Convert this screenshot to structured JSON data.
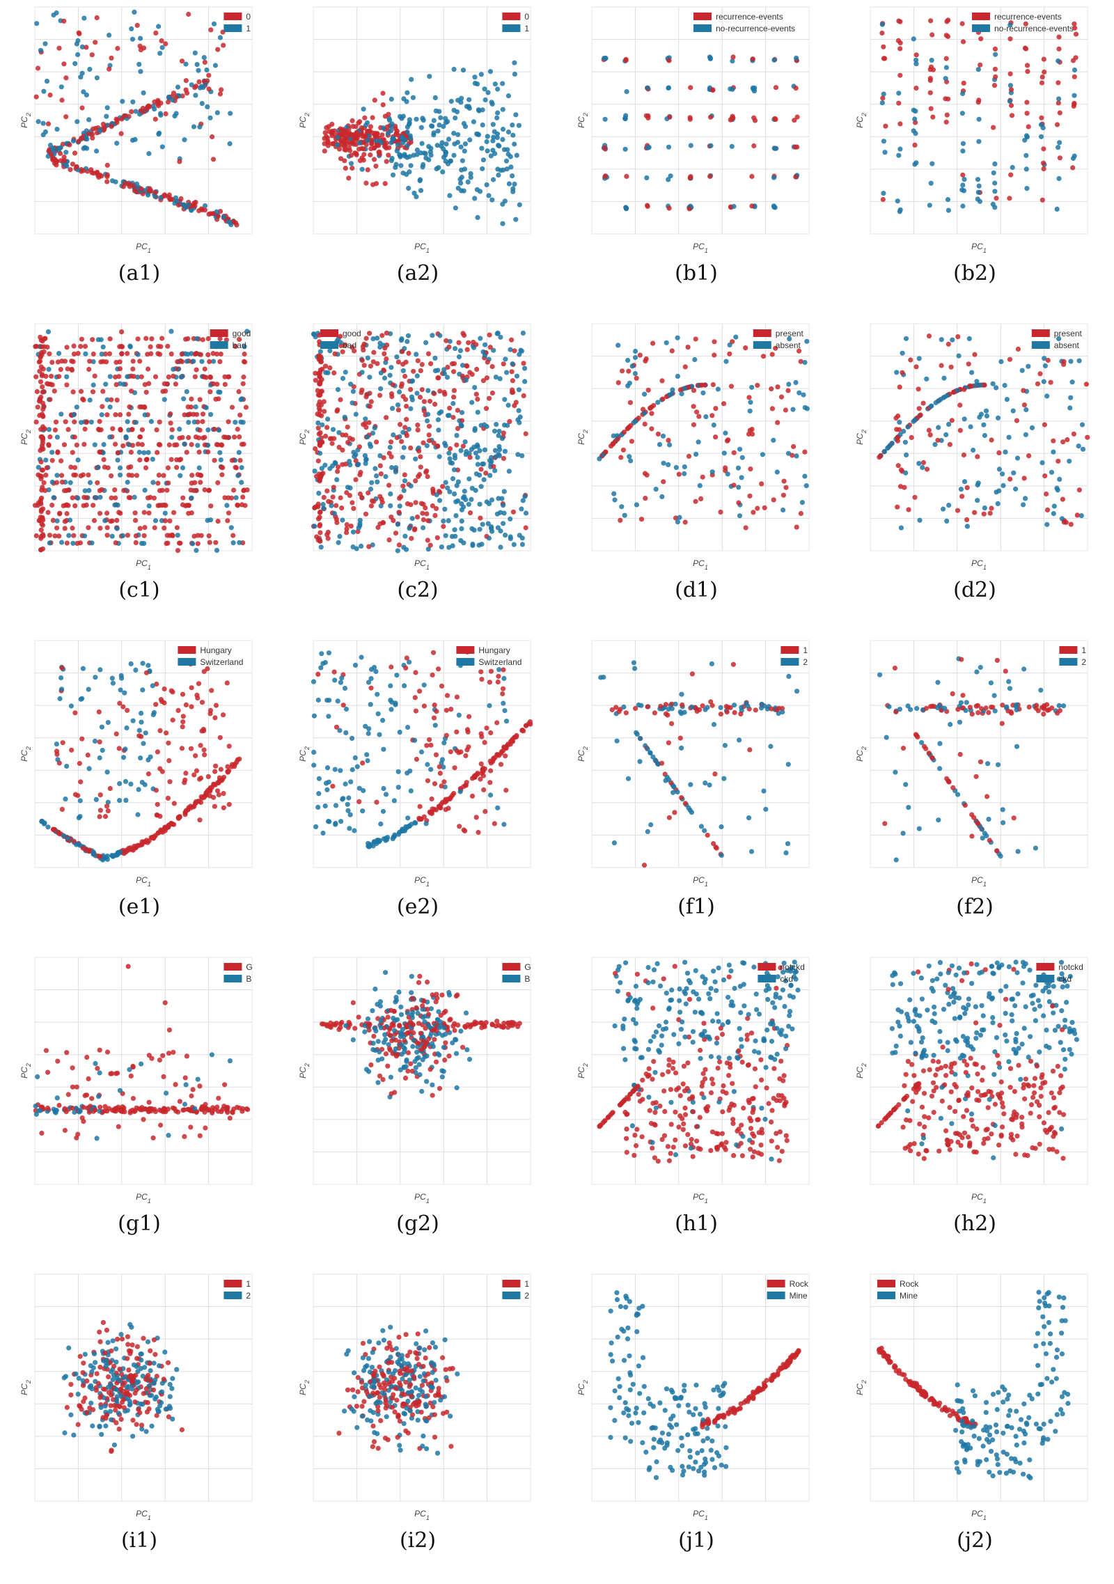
{
  "colors": {
    "class_a": "#c8282d",
    "class_b": "#1f77a4",
    "grid": "#dddddd"
  },
  "axis": {
    "xlabel": "PC",
    "ylabel": "PC",
    "x_sub": "1",
    "y_sub": "2"
  },
  "chart_data": [
    {
      "id": "a1",
      "type": "scatter",
      "caption": "(a1)",
      "legend": [
        "0",
        "1"
      ],
      "legend_position": "top-right",
      "shape": "fan",
      "xlim": [
        0,
        10
      ],
      "ylim": [
        0,
        10
      ]
    },
    {
      "id": "a2",
      "type": "scatter",
      "caption": "(a2)",
      "legend": [
        "0",
        "1"
      ],
      "legend_position": "top-right",
      "shape": "wedge",
      "xlim": [
        0,
        10
      ],
      "ylim": [
        0,
        10
      ]
    },
    {
      "id": "b1",
      "type": "scatter",
      "caption": "(b1)",
      "legend": [
        "recurrence-events",
        "no-recurrence-events"
      ],
      "legend_position": "top-right",
      "shape": "columns",
      "xlim": [
        0,
        10
      ],
      "ylim": [
        0,
        10
      ]
    },
    {
      "id": "b2",
      "type": "scatter",
      "caption": "(b2)",
      "legend": [
        "recurrence-events",
        "no-recurrence-events"
      ],
      "legend_position": "top-right",
      "shape": "columns2",
      "xlim": [
        0,
        10
      ],
      "ylim": [
        0,
        10
      ]
    },
    {
      "id": "c1",
      "type": "scatter",
      "caption": "(c1)",
      "legend": [
        "good",
        "bad"
      ],
      "legend_position": "top-right",
      "shape": "dense",
      "xlim": [
        0,
        10
      ],
      "ylim": [
        0,
        10
      ]
    },
    {
      "id": "c2",
      "type": "scatter",
      "caption": "(c2)",
      "legend": [
        "good",
        "bad"
      ],
      "legend_position": "top-left",
      "shape": "dense2",
      "xlim": [
        0,
        10
      ],
      "ylim": [
        0,
        10
      ]
    },
    {
      "id": "d1",
      "type": "scatter",
      "caption": "(d1)",
      "legend": [
        "present",
        "absent"
      ],
      "legend_position": "top-right",
      "shape": "arc",
      "xlim": [
        0,
        10
      ],
      "ylim": [
        0,
        10
      ]
    },
    {
      "id": "d2",
      "type": "scatter",
      "caption": "(d2)",
      "legend": [
        "present",
        "absent"
      ],
      "legend_position": "top-right",
      "shape": "arc",
      "xlim": [
        0,
        10
      ],
      "ylim": [
        0,
        10
      ]
    },
    {
      "id": "e1",
      "type": "scatter",
      "caption": "(e1)",
      "legend": [
        "Hungary",
        "Switzerland"
      ],
      "legend_position": "top-right",
      "shape": "vcurve",
      "xlim": [
        0,
        10
      ],
      "ylim": [
        0,
        10
      ]
    },
    {
      "id": "e2",
      "type": "scatter",
      "caption": "(e2)",
      "legend": [
        "Hungary",
        "Switzerland"
      ],
      "legend_position": "top-right",
      "shape": "hull",
      "xlim": [
        0,
        10
      ],
      "ylim": [
        0,
        10
      ]
    },
    {
      "id": "f1",
      "type": "scatter",
      "caption": "(f1)",
      "legend": [
        "1",
        "2"
      ],
      "legend_position": "top-right",
      "shape": "cross",
      "xlim": [
        0,
        10
      ],
      "ylim": [
        0,
        10
      ]
    },
    {
      "id": "f2",
      "type": "scatter",
      "caption": "(f2)",
      "legend": [
        "1",
        "2"
      ],
      "legend_position": "top-right",
      "shape": "cross2",
      "xlim": [
        0,
        10
      ],
      "ylim": [
        0,
        10
      ]
    },
    {
      "id": "g1",
      "type": "scatter",
      "caption": "(g1)",
      "legend": [
        "G",
        "B"
      ],
      "legend_position": "top-right",
      "shape": "flat",
      "xlim": [
        0,
        10
      ],
      "ylim": [
        0,
        10
      ]
    },
    {
      "id": "g2",
      "type": "scatter",
      "caption": "(g2)",
      "legend": [
        "G",
        "B"
      ],
      "legend_position": "top-right",
      "shape": "diamond",
      "xlim": [
        0,
        10
      ],
      "ylim": [
        0,
        10
      ]
    },
    {
      "id": "h1",
      "type": "scatter",
      "caption": "(h1)",
      "legend": [
        "notckd",
        "ckd"
      ],
      "legend_position": "top-right",
      "shape": "split",
      "xlim": [
        0,
        10
      ],
      "ylim": [
        0,
        10
      ]
    },
    {
      "id": "h2",
      "type": "scatter",
      "caption": "(h2)",
      "legend": [
        "notckd",
        "ckd"
      ],
      "legend_position": "top-right",
      "shape": "split",
      "xlim": [
        0,
        10
      ],
      "ylim": [
        0,
        10
      ]
    },
    {
      "id": "i1",
      "type": "scatter",
      "caption": "(i1)",
      "legend": [
        "1",
        "2"
      ],
      "legend_position": "top-right",
      "shape": "blob",
      "xlim": [
        0,
        10
      ],
      "ylim": [
        0,
        10
      ]
    },
    {
      "id": "i2",
      "type": "scatter",
      "caption": "(i2)",
      "legend": [
        "1",
        "2"
      ],
      "legend_position": "top-right",
      "shape": "blob2",
      "xlim": [
        0,
        10
      ],
      "ylim": [
        0,
        10
      ]
    },
    {
      "id": "j1",
      "type": "scatter",
      "caption": "(j1)",
      "legend": [
        "Rock",
        "Mine"
      ],
      "legend_position": "top-right",
      "shape": "ucurve",
      "xlim": [
        0,
        10
      ],
      "ylim": [
        0,
        10
      ]
    },
    {
      "id": "j2",
      "type": "scatter",
      "caption": "(j2)",
      "legend": [
        "Rock",
        "Mine"
      ],
      "legend_position": "top-left",
      "shape": "ucurve2",
      "xlim": [
        0,
        10
      ],
      "ylim": [
        0,
        10
      ]
    }
  ]
}
